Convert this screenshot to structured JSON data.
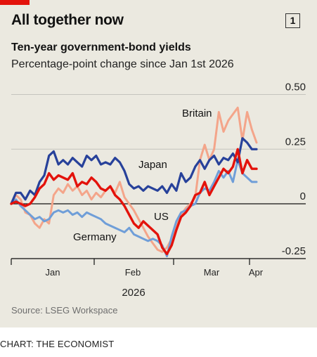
{
  "header": {
    "title": "All together now",
    "badge": "1",
    "subtitle": "Ten-year government-bond yields",
    "description": "Percentage-point change since Jan 1st 2026"
  },
  "footer": {
    "source": "Source: LSEG Workspace",
    "credit": "CHART: THE ECONOMIST"
  },
  "colors": {
    "britain": "#f4a58a",
    "japan": "#27419a",
    "us": "#e3120b",
    "germany": "#6f9ed8",
    "accent": "#e3120b",
    "background": "#ebe9e0"
  },
  "chart_data": {
    "type": "line",
    "title": "Ten-year government-bond yields",
    "subtitle": "Percentage-point change since Jan 1st 2026",
    "xlabel": "2026",
    "ylabel": "",
    "ylim": [
      -0.25,
      0.5
    ],
    "yticks": [
      {
        "value": 0.5,
        "label": "0.50"
      },
      {
        "value": 0.25,
        "label": "0.25"
      },
      {
        "value": 0,
        "label": "0"
      },
      {
        "value": -0.25,
        "label": "-0.25"
      }
    ],
    "xticks": [
      "Jan",
      "Feb",
      "Mar",
      "Apr"
    ],
    "year_label": "2026",
    "series": [
      {
        "name": "Britain",
        "color_key": "britain",
        "label": "Britain",
        "values": [
          0.0,
          0.04,
          0.02,
          -0.04,
          -0.05,
          -0.09,
          -0.11,
          -0.07,
          -0.09,
          0.04,
          0.07,
          0.05,
          0.09,
          0.06,
          0.08,
          0.04,
          0.06,
          0.02,
          0.05,
          0.03,
          0.06,
          0.08,
          0.05,
          0.1,
          0.03,
          0.0,
          -0.03,
          -0.07,
          -0.11,
          -0.15,
          -0.18,
          -0.21,
          -0.22,
          -0.2,
          -0.16,
          -0.1,
          -0.05,
          -0.02,
          0.0,
          0.03,
          0.2,
          0.27,
          0.2,
          0.25,
          0.42,
          0.33,
          0.38,
          0.41,
          0.44,
          0.29,
          0.42,
          0.34,
          0.28
        ]
      },
      {
        "name": "Japan",
        "color_key": "japan",
        "label": "Japan",
        "values": [
          0.0,
          0.05,
          0.05,
          0.02,
          0.06,
          0.04,
          0.1,
          0.13,
          0.22,
          0.24,
          0.18,
          0.2,
          0.18,
          0.21,
          0.19,
          0.17,
          0.22,
          0.2,
          0.22,
          0.18,
          0.19,
          0.18,
          0.21,
          0.19,
          0.15,
          0.09,
          0.07,
          0.08,
          0.06,
          0.08,
          0.07,
          0.06,
          0.08,
          0.05,
          0.09,
          0.06,
          0.14,
          0.1,
          0.12,
          0.17,
          0.2,
          0.16,
          0.2,
          0.22,
          0.18,
          0.21,
          0.2,
          0.23,
          0.19,
          0.3,
          0.28,
          0.25,
          0.25
        ]
      },
      {
        "name": "US",
        "color_key": "us",
        "label": "US",
        "values": [
          0.0,
          0.01,
          0.0,
          -0.01,
          0.0,
          0.03,
          0.07,
          0.09,
          0.14,
          0.11,
          0.13,
          0.12,
          0.11,
          0.14,
          0.08,
          0.1,
          0.09,
          0.12,
          0.1,
          0.07,
          0.06,
          0.08,
          0.04,
          0.02,
          -0.01,
          -0.05,
          -0.09,
          -0.11,
          -0.08,
          -0.1,
          -0.12,
          -0.14,
          -0.2,
          -0.23,
          -0.19,
          -0.12,
          -0.06,
          -0.04,
          -0.01,
          0.04,
          0.05,
          0.1,
          0.04,
          0.08,
          0.12,
          0.16,
          0.14,
          0.17,
          0.25,
          0.14,
          0.2,
          0.16,
          0.16
        ]
      },
      {
        "name": "Germany",
        "color_key": "germany",
        "label": "Germany",
        "values": [
          0.0,
          0.02,
          -0.01,
          -0.03,
          -0.05,
          -0.07,
          -0.06,
          -0.08,
          -0.07,
          -0.04,
          -0.03,
          -0.04,
          -0.03,
          -0.05,
          -0.04,
          -0.06,
          -0.04,
          -0.05,
          -0.06,
          -0.07,
          -0.09,
          -0.1,
          -0.11,
          -0.12,
          -0.13,
          -0.11,
          -0.14,
          -0.15,
          -0.16,
          -0.17,
          -0.16,
          -0.17,
          -0.19,
          -0.24,
          -0.15,
          -0.08,
          -0.04,
          -0.03,
          -0.01,
          0.0,
          0.05,
          0.07,
          0.06,
          0.1,
          0.15,
          0.12,
          0.15,
          0.1,
          0.2,
          0.14,
          0.12,
          0.1,
          0.1
        ]
      }
    ],
    "legend": "inline labels"
  }
}
